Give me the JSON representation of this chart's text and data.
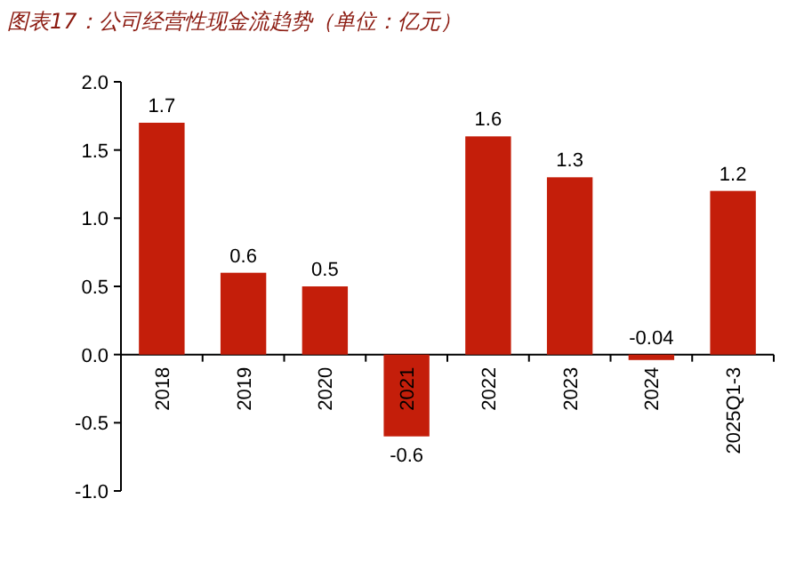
{
  "chart_data": {
    "type": "bar",
    "title": "图表17：公司经营性现金流趋势（单位：亿元）",
    "categories": [
      "2018",
      "2019",
      "2020",
      "2021",
      "2022",
      "2023",
      "2024",
      "2025Q1-3"
    ],
    "values": [
      1.7,
      0.6,
      0.5,
      -0.6,
      1.6,
      1.3,
      -0.04,
      1.2
    ],
    "color": "#c41e0a",
    "ylim": [
      -1,
      2
    ],
    "yticks": [
      {
        "value": -1,
        "label": "-1.0"
      },
      {
        "value": -0.5,
        "label": "-0.5"
      },
      {
        "value": 0,
        "label": "0.0"
      },
      {
        "value": 0.5,
        "label": "0.5"
      },
      {
        "value": 1,
        "label": "1.0"
      },
      {
        "value": 1.5,
        "label": "1.5"
      },
      {
        "value": 2,
        "label": "2.0"
      }
    ],
    "data_labels": true
  }
}
